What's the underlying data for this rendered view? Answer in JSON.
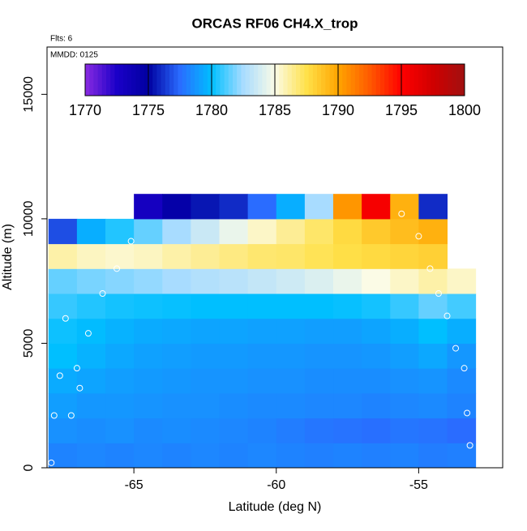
{
  "chart_data": {
    "type": "heatmap",
    "title": "ORCAS RF06 CH4.X_trop",
    "annotations": [
      "Flts: 6",
      "MMDD: 0125"
    ],
    "x_label": "Latitude (deg N)",
    "y_label": "Altitude (m)",
    "xlim": [
      -68.05,
      -52.05
    ],
    "xticks": [
      -65,
      -60,
      -55
    ],
    "ylim": [
      0,
      16900
    ],
    "yticks": [
      0,
      5000,
      10000,
      15000
    ],
    "clim": [
      1770,
      1800
    ],
    "cticks": [
      1770,
      1775,
      1780,
      1785,
      1790,
      1795,
      1800
    ],
    "colormap": [
      "#8a2be2",
      "#1a00c8",
      "#0000a0",
      "#2a6cff",
      "#00bfff",
      "#a8dcff",
      "#fbfbe6",
      "#ffe14a",
      "#ffa500",
      "#ff5a00",
      "#ff0000",
      "#d00000",
      "#a01010"
    ],
    "x": [
      -67.5,
      -66.5,
      -65.5,
      -64.5,
      -63.5,
      -62.5,
      -61.5,
      -60.5,
      -59.5,
      -58.5,
      -57.5,
      -56.5,
      -55.5,
      -54.5,
      -53.5
    ],
    "y": [
      500,
      1500,
      2500,
      3500,
      4500,
      5500,
      6500,
      7500,
      8500,
      9500,
      10500
    ],
    "z": [
      [
        1778.2,
        1778.3,
        1778.2,
        1778.3,
        1778.2,
        1778.3,
        1778.2,
        1778.3,
        1778.2,
        1778.1,
        1778.2,
        1778.1,
        1778.2,
        1778.0,
        1778.1
      ],
      [
        1778.6,
        1778.5,
        1778.6,
        1778.4,
        1778.5,
        1778.4,
        1778.3,
        1778.2,
        1778.0,
        1777.8,
        1777.7,
        1777.6,
        1777.8,
        1777.7,
        1777.5
      ],
      [
        1779.0,
        1778.8,
        1778.8,
        1778.7,
        1778.6,
        1778.6,
        1778.5,
        1778.4,
        1778.4,
        1778.3,
        1778.3,
        1778.2,
        1778.3,
        1778.4,
        1778.2
      ],
      [
        1779.4,
        1779.2,
        1779.0,
        1778.9,
        1778.8,
        1778.7,
        1778.7,
        1778.6,
        1778.6,
        1778.5,
        1778.5,
        1778.5,
        1778.6,
        1778.7,
        1778.4
      ],
      [
        1780.0,
        1779.6,
        1779.3,
        1779.1,
        1779.0,
        1778.9,
        1778.9,
        1778.8,
        1778.8,
        1778.7,
        1778.7,
        1778.8,
        1779.0,
        1779.3,
        1778.8
      ],
      [
        1780.2,
        1779.9,
        1779.6,
        1779.4,
        1779.3,
        1779.2,
        1779.2,
        1779.1,
        1779.1,
        1779.0,
        1779.0,
        1779.2,
        1779.5,
        1780.0,
        1779.5
      ],
      [
        1780.8,
        1780.5,
        1780.3,
        1780.2,
        1780.1,
        1780.0,
        1780.0,
        1780.0,
        1780.0,
        1780.0,
        1780.1,
        1780.3,
        1780.8,
        1781.5,
        1781.0
      ],
      [
        1781.5,
        1781.8,
        1782.0,
        1782.2,
        1782.5,
        1782.8,
        1783.0,
        1783.3,
        1783.6,
        1784.0,
        1784.5,
        1785.0,
        1785.5,
        1786.0,
        1785.5
      ],
      [
        1786.0,
        1785.6,
        1785.4,
        1785.6,
        1786.0,
        1786.3,
        1786.6,
        1786.9,
        1787.0,
        1787.3,
        1787.6,
        1787.8,
        1788.0,
        1788.2,
        null
      ],
      [
        1776.8,
        1779.5,
        1780.5,
        1781.5,
        1782.5,
        1783.5,
        1784.5,
        1785.5,
        1786.3,
        1787.0,
        1787.8,
        1788.5,
        1789.0,
        1789.5,
        null
      ],
      [
        null,
        null,
        null,
        1773.0,
        1774.5,
        1775.5,
        1776.0,
        1777.5,
        1779.5,
        1782.5,
        1790.5,
        1795.5,
        1789.5,
        1776.0,
        null
      ]
    ],
    "points": {
      "x": [
        -67.9,
        -67.8,
        -67.6,
        -67.4,
        -67.0,
        -66.6,
        -66.1,
        -65.6,
        -65.1,
        -67.2,
        -66.9,
        -55.6,
        -55.0,
        -54.6,
        -54.3,
        -54.0,
        -53.7,
        -53.4,
        -53.3,
        -53.2
      ],
      "y": [
        200,
        2100,
        3700,
        6000,
        4000,
        5400,
        7000,
        8000,
        9100,
        2100,
        3200,
        10200,
        9300,
        8000,
        7000,
        6100,
        4800,
        4000,
        2200,
        900
      ]
    }
  }
}
